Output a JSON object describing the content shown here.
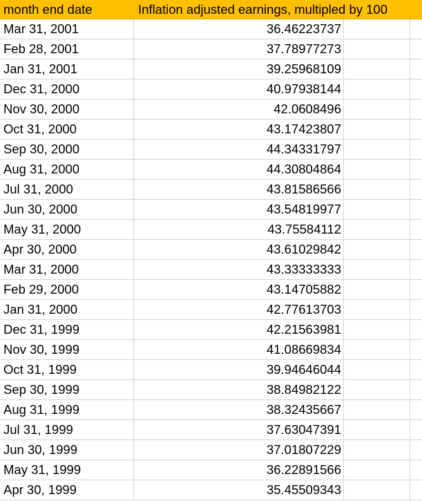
{
  "header": {
    "col_a": "month end date",
    "col_b": "Inflation adjusted earnings, multipled by 100"
  },
  "header_color": "#FFC000",
  "rows": [
    {
      "date": "Mar 31, 2001",
      "value": "36.46223737"
    },
    {
      "date": "Feb 28, 2001",
      "value": "37.78977273"
    },
    {
      "date": "Jan 31, 2001",
      "value": "39.25968109"
    },
    {
      "date": "Dec 31, 2000",
      "value": "40.97938144"
    },
    {
      "date": "Nov 30, 2000",
      "value": "42.0608496"
    },
    {
      "date": "Oct 31, 2000",
      "value": "43.17423807"
    },
    {
      "date": "Sep 30, 2000",
      "value": "44.34331797"
    },
    {
      "date": "Aug 31, 2000",
      "value": "44.30804864"
    },
    {
      "date": "Jul 31, 2000",
      "value": "43.81586566"
    },
    {
      "date": "Jun 30, 2000",
      "value": "43.54819977"
    },
    {
      "date": "May 31, 2000",
      "value": "43.75584112"
    },
    {
      "date": "Apr 30, 2000",
      "value": "43.61029842"
    },
    {
      "date": "Mar 31, 2000",
      "value": "43.33333333"
    },
    {
      "date": "Feb 29, 2000",
      "value": "43.14705882"
    },
    {
      "date": "Jan 31, 2000",
      "value": "42.77613703"
    },
    {
      "date": "Dec 31, 1999",
      "value": "42.21563981"
    },
    {
      "date": "Nov 30, 1999",
      "value": "41.08669834"
    },
    {
      "date": "Oct 31, 1999",
      "value": "39.94646044"
    },
    {
      "date": "Sep 30, 1999",
      "value": "38.84982122"
    },
    {
      "date": "Aug 31, 1999",
      "value": "38.32435667"
    },
    {
      "date": "Jul 31, 1999",
      "value": "37.63047391"
    },
    {
      "date": "Jun 30, 1999",
      "value": "37.01807229"
    },
    {
      "date": "May 31, 1999",
      "value": "36.22891566"
    },
    {
      "date": "Apr 30, 1999",
      "value": "35.45509343"
    }
  ]
}
